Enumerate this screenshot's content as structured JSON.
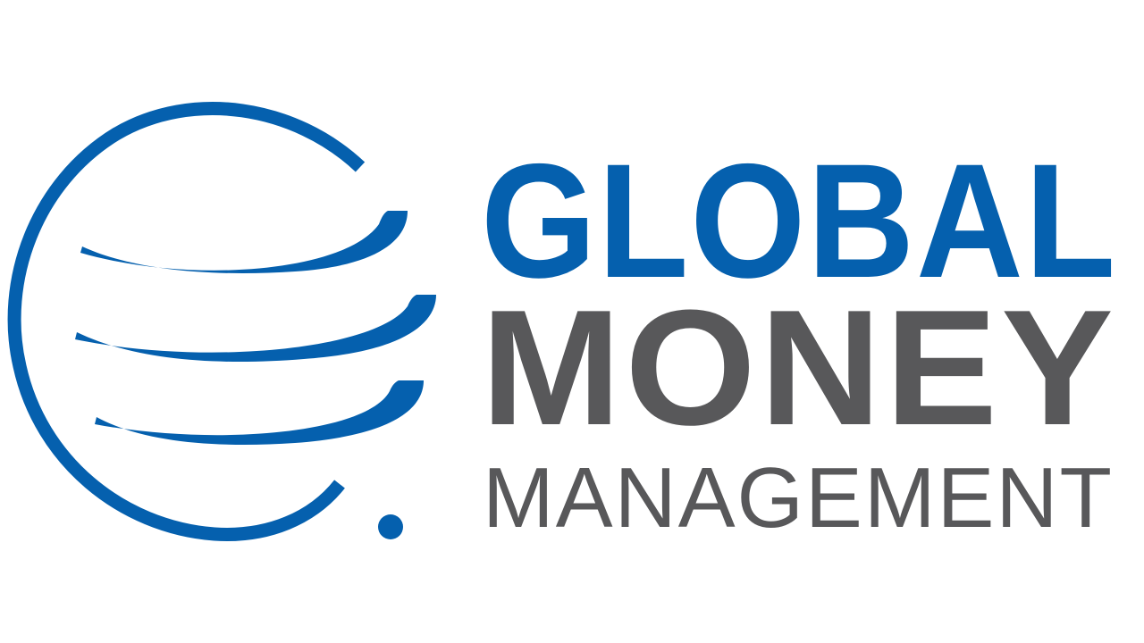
{
  "brand": {
    "line1": "GLOBAL",
    "line2": "MONEY",
    "line3": "MANAGEMENT"
  },
  "colors": {
    "primary": "#0560ae",
    "secondary": "#58585a",
    "background": "#ffffff"
  },
  "icon": "globe-icon"
}
